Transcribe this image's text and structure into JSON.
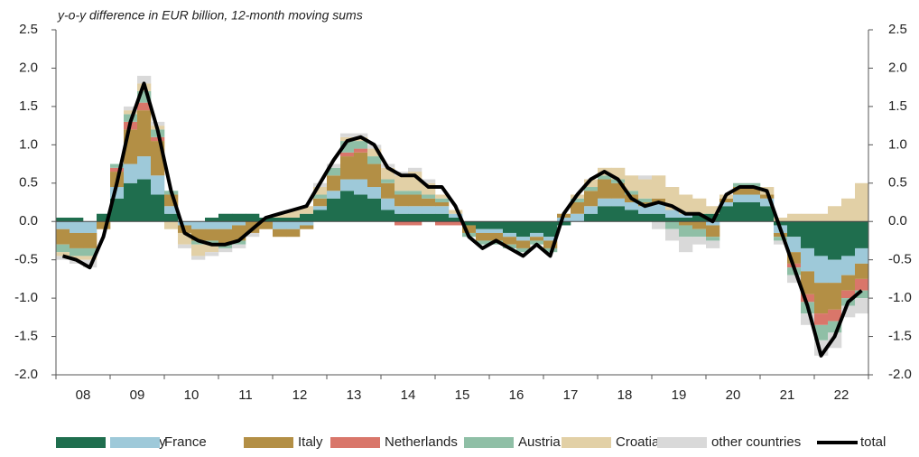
{
  "chart_data": {
    "type": "bar",
    "stacked": true,
    "subtitle": "y-o-y difference in EUR billion, 12-month moving sums",
    "categories": [
      null,
      null,
      "08",
      null,
      null,
      null,
      "09",
      null,
      null,
      null,
      "10",
      null,
      null,
      null,
      "11",
      null,
      null,
      null,
      "12",
      null,
      null,
      null,
      "13",
      null,
      null,
      null,
      "14",
      null,
      null,
      null,
      "15",
      null,
      null,
      null,
      "16",
      null,
      null,
      null,
      "17",
      null,
      null,
      null,
      "18",
      null,
      null,
      null,
      "19",
      null,
      null,
      null,
      "20",
      null,
      null,
      null,
      "21",
      null,
      null,
      null,
      "22",
      null
    ],
    "series": [
      {
        "name": "Germany",
        "color": "#1f6e4e",
        "values": [
          0.05,
          0.05,
          0,
          0.1,
          0.3,
          0.5,
          0.55,
          0.35,
          0.1,
          0,
          0,
          0.05,
          0.1,
          0.1,
          0.1,
          0.05,
          0.05,
          0.05,
          0.1,
          0.15,
          0.3,
          0.4,
          0.35,
          0.3,
          0.15,
          0.1,
          0.1,
          0.1,
          0.1,
          0.05,
          -0.05,
          -0.1,
          -0.1,
          -0.15,
          -0.2,
          -0.15,
          -0.2,
          -0.05,
          0,
          0.1,
          0.2,
          0.2,
          0.15,
          0.1,
          0.1,
          0.05,
          0.05,
          0.1,
          0.1,
          0.2,
          0.25,
          0.25,
          0.2,
          -0.05,
          -0.2,
          -0.35,
          -0.45,
          -0.5,
          -0.45,
          -0.35
        ]
      },
      {
        "name": "France",
        "color": "#9ec9d9",
        "values": [
          -0.1,
          -0.15,
          -0.15,
          0,
          0.15,
          0.25,
          0.3,
          0.25,
          0.1,
          -0.05,
          -0.1,
          -0.1,
          -0.1,
          -0.05,
          0,
          0,
          -0.1,
          -0.1,
          -0.05,
          0.05,
          0.1,
          0.15,
          0.2,
          0.15,
          0.15,
          0.1,
          0.1,
          0.1,
          0.1,
          0.05,
          0,
          -0.05,
          -0.05,
          -0.05,
          -0.05,
          -0.05,
          -0.05,
          0.05,
          0.1,
          0.1,
          0.1,
          0.1,
          0.1,
          0.1,
          0.15,
          0.1,
          0.05,
          0,
          -0.05,
          0.05,
          0.1,
          0.1,
          0.1,
          -0.1,
          -0.2,
          -0.3,
          -0.35,
          -0.3,
          -0.25,
          -0.2
        ]
      },
      {
        "name": "Italy",
        "color": "#b38f45",
        "values": [
          -0.2,
          -0.2,
          -0.2,
          -0.1,
          0.2,
          0.45,
          0.6,
          0.45,
          0.15,
          -0.1,
          -0.15,
          -0.15,
          -0.2,
          -0.2,
          -0.15,
          -0.1,
          -0.1,
          -0.1,
          -0.05,
          0.1,
          0.2,
          0.3,
          0.35,
          0.3,
          0.2,
          0.15,
          0.15,
          0.1,
          0.05,
          0,
          -0.1,
          -0.1,
          -0.1,
          -0.1,
          -0.1,
          -0.05,
          -0.1,
          0.05,
          0.15,
          0.2,
          0.25,
          0.2,
          0.1,
          0.05,
          0.05,
          0,
          -0.05,
          -0.1,
          -0.15,
          0.05,
          0.1,
          0.1,
          0.05,
          -0.05,
          -0.15,
          -0.3,
          -0.4,
          -0.35,
          -0.2,
          -0.2
        ]
      },
      {
        "name": "Netherlands",
        "color": "#d9766a",
        "values": [
          0,
          0,
          0,
          0,
          0.05,
          0.1,
          0.1,
          0.05,
          0,
          0,
          0,
          0,
          0,
          0,
          0,
          0,
          0,
          0,
          0,
          0,
          0,
          0.05,
          0.05,
          0,
          0,
          -0.05,
          -0.05,
          0,
          -0.05,
          -0.05,
          0,
          0,
          0,
          0,
          0,
          0,
          0,
          0,
          0,
          0,
          0,
          0,
          0,
          0,
          0,
          0,
          0,
          0,
          0,
          0,
          0,
          0,
          0,
          0,
          -0.05,
          -0.1,
          -0.15,
          -0.15,
          -0.1,
          -0.15
        ]
      },
      {
        "name": "Austria",
        "color": "#8fbfa6",
        "values": [
          -0.1,
          -0.1,
          -0.1,
          0,
          0.05,
          0.1,
          0.15,
          0.1,
          0.05,
          0,
          -0.05,
          -0.05,
          -0.05,
          -0.05,
          0,
          0,
          0,
          0,
          0,
          0.05,
          0.1,
          0.15,
          0.1,
          0.1,
          0.05,
          0.05,
          0.05,
          0.05,
          0.05,
          0,
          -0.05,
          -0.05,
          -0.05,
          -0.05,
          -0.05,
          -0.05,
          -0.05,
          0,
          0.05,
          0.05,
          0.05,
          0.05,
          0.05,
          0.05,
          0,
          -0.1,
          -0.15,
          -0.1,
          -0.05,
          0,
          0.05,
          0.05,
          0,
          -0.05,
          -0.1,
          -0.15,
          -0.2,
          -0.15,
          -0.1,
          -0.1
        ]
      },
      {
        "name": "Croatia",
        "color": "#e2d0a6",
        "values": [
          -0.05,
          -0.05,
          -0.05,
          0,
          0,
          0.05,
          0.1,
          0.05,
          -0.1,
          -0.15,
          -0.15,
          -0.1,
          0,
          0,
          0,
          0,
          0.05,
          0.1,
          0.1,
          0.1,
          0,
          0.05,
          0.05,
          0.1,
          0.15,
          0.2,
          0.25,
          0.15,
          0.05,
          0.05,
          0,
          0,
          0,
          0,
          0,
          0,
          0,
          0,
          0.05,
          0.1,
          0.1,
          0.15,
          0.2,
          0.25,
          0.3,
          0.3,
          0.25,
          0.2,
          0.1,
          0.05,
          0,
          0,
          0.1,
          0.05,
          0.1,
          0.1,
          0.1,
          0.2,
          0.3,
          0.5
        ]
      },
      {
        "name": "other countries",
        "color": "#d9d9d9",
        "values": [
          -0.05,
          -0.05,
          -0.1,
          0,
          0,
          0.05,
          0.1,
          0.05,
          0,
          -0.05,
          -0.05,
          -0.05,
          -0.05,
          -0.05,
          -0.05,
          0,
          0,
          0,
          0,
          0.05,
          0.05,
          0.05,
          0.05,
          0.05,
          0.05,
          0.05,
          0.05,
          0.05,
          0,
          0,
          0,
          0,
          0,
          0,
          0,
          0,
          0,
          0,
          0,
          0,
          0,
          0,
          0,
          0.05,
          -0.1,
          -0.15,
          -0.2,
          -0.1,
          -0.1,
          0,
          0,
          0,
          0,
          -0.05,
          -0.1,
          -0.15,
          -0.2,
          -0.2,
          -0.15,
          -0.2
        ]
      },
      {
        "name": "total",
        "color": "#000000",
        "type": "line",
        "values": [
          -0.45,
          -0.5,
          -0.6,
          -0.2,
          0.5,
          1.3,
          1.8,
          1.2,
          0.4,
          -0.15,
          -0.25,
          -0.3,
          -0.3,
          -0.25,
          -0.1,
          0.05,
          0.1,
          0.15,
          0.2,
          0.5,
          0.8,
          1.05,
          1.1,
          1.0,
          0.7,
          0.6,
          0.6,
          0.45,
          0.45,
          0.2,
          -0.2,
          -0.35,
          -0.25,
          -0.35,
          -0.45,
          -0.3,
          -0.45,
          0.1,
          0.35,
          0.55,
          0.65,
          0.55,
          0.3,
          0.2,
          0.25,
          0.2,
          0.1,
          0.1,
          0,
          0.35,
          0.45,
          0.45,
          0.4,
          -0.1,
          -0.6,
          -1.1,
          -1.75,
          -1.5,
          -1.05,
          -0.9
        ]
      }
    ],
    "ylim": [
      -2.0,
      2.5
    ],
    "yticks": [
      {
        "value": -2.0,
        "label": "-2.0"
      },
      -1.5,
      {
        "value": -1.0,
        "label": "-1.0"
      },
      -0.5,
      {
        "value": 0,
        "label": "0.0"
      },
      0.5,
      {
        "value": 1.0,
        "label": "1.0"
      },
      1.5,
      {
        "value": 2.0,
        "label": "2.0"
      },
      2.5
    ]
  }
}
